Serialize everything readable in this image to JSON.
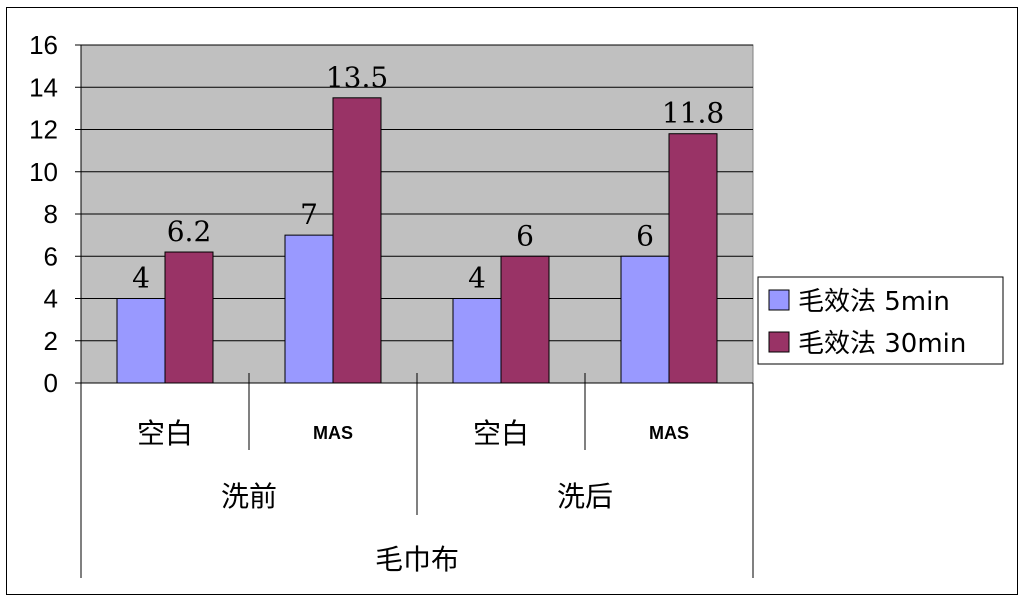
{
  "chart_data": {
    "type": "bar",
    "title": "",
    "xlabel": "",
    "ylabel": "",
    "ylim": [
      0,
      16
    ],
    "yticks": [
      0,
      2,
      4,
      6,
      8,
      10,
      12,
      14,
      16
    ],
    "grid": true,
    "legend_position": "right",
    "categories": [
      "空白",
      "MAS",
      "空白",
      "MAS"
    ],
    "groups": [
      {
        "label": "洗前",
        "span": [
          0,
          1
        ]
      },
      {
        "label": "洗后",
        "span": [
          2,
          3
        ]
      }
    ],
    "supergroup": "毛巾布",
    "series": [
      {
        "name": "毛效法 5min",
        "color": "#9999ff",
        "values": [
          4,
          7,
          4,
          6
        ],
        "labels": [
          "4",
          "7",
          "4",
          "6"
        ]
      },
      {
        "name": "毛效法 30min",
        "color": "#993366",
        "values": [
          6.2,
          13.5,
          6,
          11.8
        ],
        "labels": [
          "6.2",
          "13.5",
          "6",
          "11.8"
        ]
      }
    ],
    "plot_background": "#c0c0c0"
  }
}
